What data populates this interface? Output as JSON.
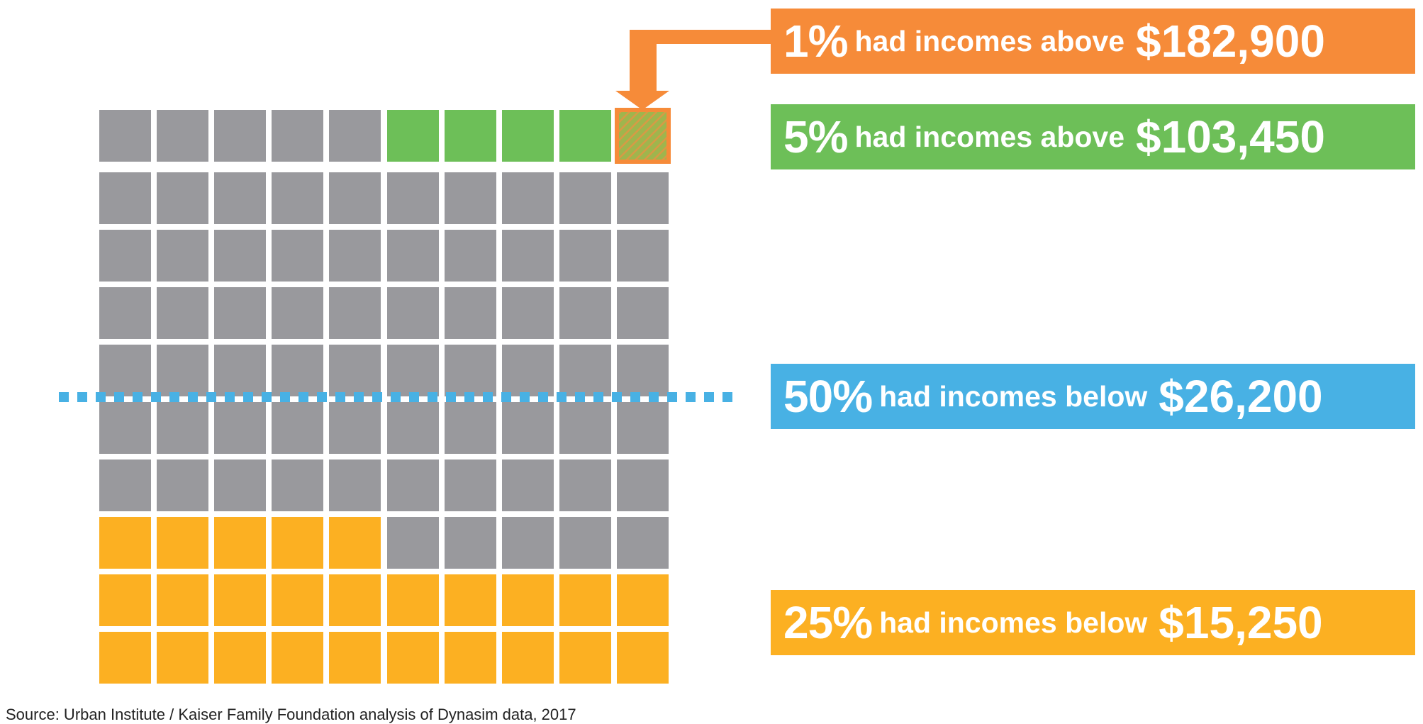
{
  "colors": {
    "gray": "#99999d",
    "green": "#6dbf58",
    "orange": "#f68b39",
    "blue": "#48b1e4",
    "yellow": "#fcb022",
    "white": "#ffffff"
  },
  "chart_data": {
    "type": "waffle",
    "rows": 10,
    "cols": 10,
    "unit_percent": 1,
    "segments": [
      {
        "name": "top 1%",
        "count": 1,
        "color": "orange",
        "cells": "row 1, column 10 (hatched)"
      },
      {
        "name": "top 5%",
        "count": 5,
        "color": "green",
        "cells": "row 1, columns 6-10"
      },
      {
        "name": "bottom 25%",
        "count": 25,
        "color": "yellow",
        "cells": "row 8 columns 1-5, rows 9-10"
      },
      {
        "name": "other",
        "count": 70,
        "color": "gray"
      }
    ],
    "median_line_percent": 50,
    "annotations": [
      {
        "id": "p1",
        "percent": "1%",
        "text": "had incomes above",
        "amount": "$182,900",
        "color": "orange"
      },
      {
        "id": "p5",
        "percent": "5%",
        "text": "had incomes above",
        "amount": "$103,450",
        "color": "green"
      },
      {
        "id": "p50",
        "percent": "50%",
        "text": "had incomes below",
        "amount": "$26,200",
        "color": "blue"
      },
      {
        "id": "p25",
        "percent": "25%",
        "text": "had incomes below",
        "amount": "$15,250",
        "color": "yellow"
      }
    ]
  },
  "labels": {
    "p1": {
      "percent": "1%",
      "text": "had incomes above",
      "amount": "$182,900"
    },
    "p5": {
      "percent": "5%",
      "text": "had incomes above",
      "amount": "$103,450"
    },
    "p50": {
      "percent": "50%",
      "text": "had incomes below",
      "amount": "$26,200"
    },
    "p25": {
      "percent": "25%",
      "text": "had incomes below",
      "amount": "$15,250"
    }
  },
  "source": "Source: Urban Institute / Kaiser Family Foundation analysis of Dynasim data, 2017"
}
